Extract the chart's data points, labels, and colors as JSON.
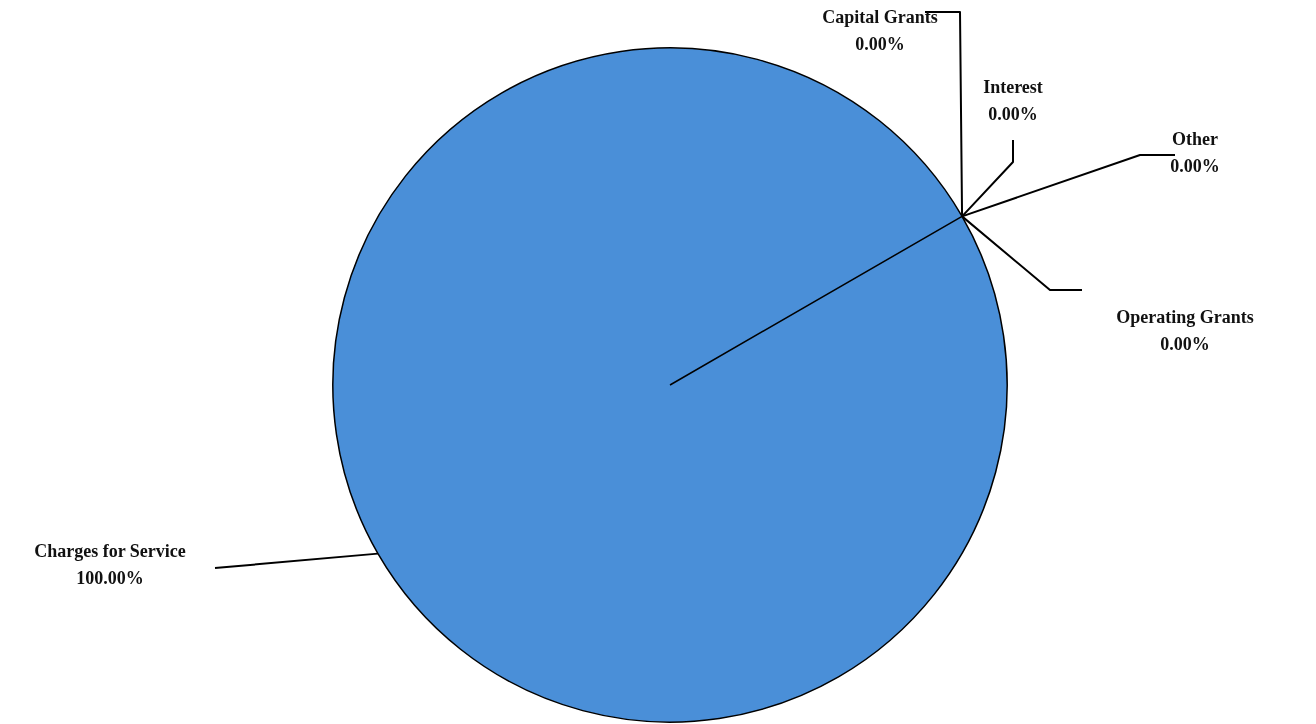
{
  "chart_data": {
    "type": "pie",
    "categories": [
      "Charges for Service",
      "Operating Grants",
      "Other",
      "Interest",
      "Capital Grants"
    ],
    "values": [
      100,
      0,
      0,
      0,
      0
    ],
    "colors": [
      "#4a8fd8",
      "#c0504d",
      "#9bbb59",
      "#8064a2",
      "#f79646"
    ],
    "value_labels": [
      "100.00%",
      "0.00%",
      "0.00%",
      "0.00%",
      "0.00%"
    ]
  }
}
